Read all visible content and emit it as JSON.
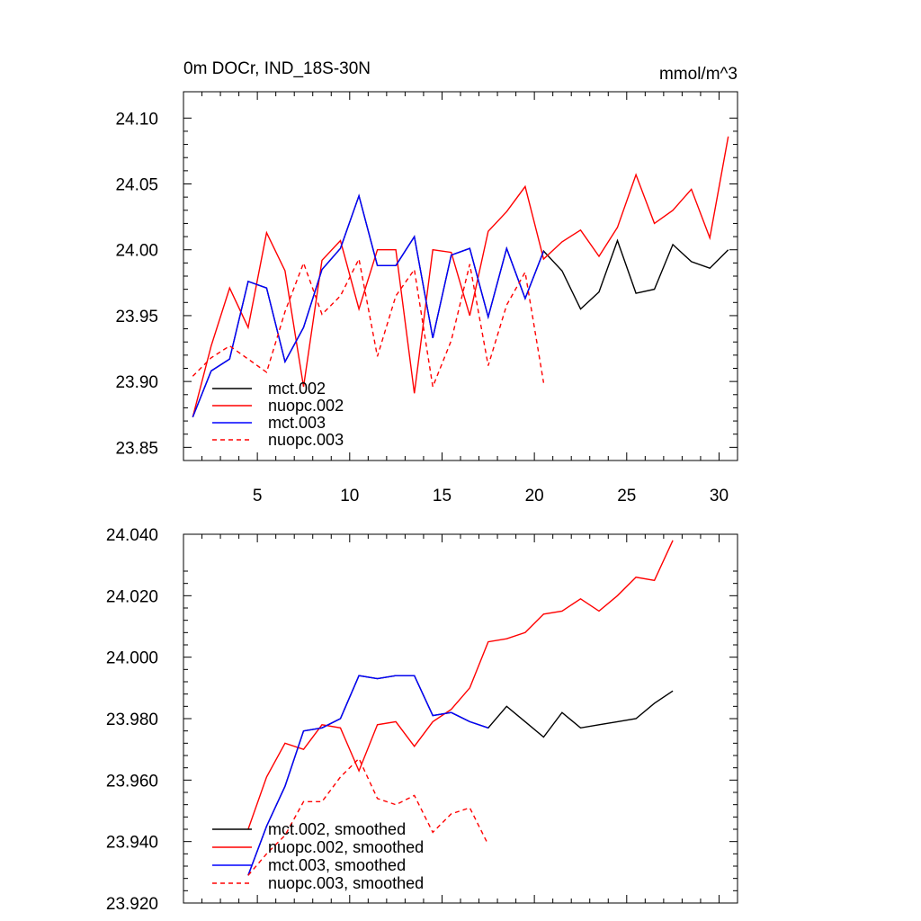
{
  "chart_data": [
    {
      "type": "line",
      "title_left": "0m DOCr, IND_18S-30N",
      "title_right": "mmol/m^3",
      "xlim": [
        1,
        31
      ],
      "ylim": [
        23.84,
        24.12
      ],
      "x_ticks": [
        5,
        10,
        15,
        20,
        25,
        30
      ],
      "x_tick_labels": [
        "5",
        "10",
        "15",
        "20",
        "25",
        "30"
      ],
      "y_ticks": [
        23.85,
        23.9,
        23.95,
        24.0,
        24.05,
        24.1
      ],
      "y_tick_labels": [
        "23.85",
        "23.90",
        "23.95",
        "24.00",
        "24.05",
        "24.10"
      ],
      "legend": [
        "mct.002",
        "nuopc.002",
        "mct.003",
        "nuopc.003"
      ],
      "series": [
        {
          "name": "mct.002",
          "color": "#000000",
          "dash": false,
          "x": [
            1.5,
            2.5,
            3.5,
            4.5,
            5.5,
            6.5,
            7.5,
            8.5,
            9.5,
            10.5,
            11.5,
            12.5,
            13.5,
            14.5,
            15.5,
            16.5,
            17.5,
            18.5,
            19.5,
            20.5,
            21.5,
            22.5,
            23.5,
            24.5,
            25.5,
            26.5,
            27.5,
            28.5,
            29.5,
            30.5
          ],
          "y": [
            23.873,
            23.908,
            23.917,
            23.976,
            23.971,
            23.915,
            23.941,
            23.985,
            24.001,
            24.041,
            23.988,
            23.988,
            24.01,
            23.933,
            23.996,
            24.001,
            23.949,
            24.001,
            23.963,
            23.999,
            23.984,
            23.955,
            23.968,
            24.007,
            23.967,
            23.97,
            24.004,
            23.991,
            23.986,
            24.0
          ]
        },
        {
          "name": "nuopc.002",
          "color": "#ff0000",
          "dash": false,
          "x": [
            1.5,
            2.5,
            3.5,
            4.5,
            5.5,
            6.5,
            7.5,
            8.5,
            9.5,
            10.5,
            11.5,
            12.5,
            13.5,
            14.5,
            15.5,
            16.5,
            17.5,
            18.5,
            19.5,
            20.5,
            21.5,
            22.5,
            23.5,
            24.5,
            25.5,
            26.5,
            27.5,
            28.5,
            29.5,
            30.5
          ],
          "y": [
            23.873,
            23.927,
            23.971,
            23.941,
            24.013,
            23.984,
            23.896,
            23.992,
            24.007,
            23.955,
            24.0,
            24.0,
            23.891,
            24.0,
            23.998,
            23.95,
            24.014,
            24.029,
            24.048,
            23.993,
            24.006,
            24.015,
            23.995,
            24.017,
            24.057,
            24.02,
            24.03,
            24.046,
            24.009,
            24.086
          ]
        },
        {
          "name": "mct.003",
          "color": "#0000ff",
          "dash": false,
          "x": [
            1.5,
            2.5,
            3.5,
            4.5,
            5.5,
            6.5,
            7.5,
            8.5,
            9.5,
            10.5,
            11.5,
            12.5,
            13.5,
            14.5,
            15.5,
            16.5,
            17.5,
            18.5,
            19.5,
            20.5
          ],
          "y": [
            23.873,
            23.908,
            23.917,
            23.976,
            23.971,
            23.915,
            23.941,
            23.985,
            24.001,
            24.041,
            23.988,
            23.988,
            24.01,
            23.933,
            23.996,
            24.001,
            23.949,
            24.001,
            23.963,
            23.999
          ]
        },
        {
          "name": "nuopc.003",
          "color": "#ff0000",
          "dash": true,
          "x": [
            1.5,
            2.5,
            3.5,
            4.5,
            5.5,
            6.5,
            7.5,
            8.5,
            9.5,
            10.5,
            11.5,
            12.5,
            13.5,
            14.5,
            15.5,
            16.5,
            17.5,
            18.5,
            19.5,
            20.5
          ],
          "y": [
            23.904,
            23.918,
            23.927,
            23.917,
            23.907,
            23.953,
            23.99,
            23.951,
            23.965,
            23.993,
            23.919,
            23.965,
            23.985,
            23.896,
            23.931,
            23.989,
            23.912,
            23.958,
            23.983,
            23.899
          ]
        }
      ]
    },
    {
      "type": "line",
      "xlim": [
        1,
        31
      ],
      "ylim": [
        23.92,
        24.04
      ],
      "x_ticks": [
        5,
        10,
        15,
        20,
        25,
        30
      ],
      "x_tick_labels": [],
      "y_ticks": [
        23.92,
        23.94,
        23.96,
        23.98,
        24.0,
        24.02,
        24.04
      ],
      "y_tick_labels": [
        "23.920",
        "23.940",
        "23.960",
        "23.980",
        "24.000",
        "24.020",
        "24.040"
      ],
      "legend": [
        "mct.002, smoothed",
        "nuopc.002, smoothed",
        "mct.003, smoothed",
        "nuopc.003, smoothed"
      ],
      "series": [
        {
          "name": "mct.002, smoothed",
          "color": "#000000",
          "dash": false,
          "x": [
            4.5,
            5.5,
            6.5,
            7.5,
            8.5,
            9.5,
            10.5,
            11.5,
            12.5,
            13.5,
            14.5,
            15.5,
            16.5,
            17.5,
            18.5,
            19.5,
            20.5,
            21.5,
            22.5,
            23.5,
            24.5,
            25.5,
            26.5,
            27.5
          ],
          "y": [
            23.929,
            23.945,
            23.958,
            23.976,
            23.977,
            23.98,
            23.994,
            23.993,
            23.994,
            23.994,
            23.981,
            23.982,
            23.979,
            23.977,
            23.984,
            23.979,
            23.974,
            23.982,
            23.977,
            23.978,
            23.979,
            23.98,
            23.985,
            23.989
          ]
        },
        {
          "name": "nuopc.002, smoothed",
          "color": "#ff0000",
          "dash": false,
          "x": [
            4.5,
            5.5,
            6.5,
            7.5,
            8.5,
            9.5,
            10.5,
            11.5,
            12.5,
            13.5,
            14.5,
            15.5,
            16.5,
            17.5,
            18.5,
            19.5,
            20.5,
            21.5,
            22.5,
            23.5,
            24.5,
            25.5,
            26.5,
            27.5
          ],
          "y": [
            23.944,
            23.961,
            23.972,
            23.97,
            23.978,
            23.977,
            23.963,
            23.978,
            23.979,
            23.971,
            23.979,
            23.983,
            23.99,
            24.005,
            24.006,
            24.008,
            24.014,
            24.015,
            24.019,
            24.015,
            24.02,
            24.026,
            24.025,
            24.038
          ]
        },
        {
          "name": "mct.003, smoothed",
          "color": "#0000ff",
          "dash": false,
          "x": [
            4.5,
            5.5,
            6.5,
            7.5,
            8.5,
            9.5,
            10.5,
            11.5,
            12.5,
            13.5,
            14.5,
            15.5,
            16.5,
            17.5
          ],
          "y": [
            23.929,
            23.945,
            23.958,
            23.976,
            23.977,
            23.98,
            23.994,
            23.993,
            23.994,
            23.994,
            23.981,
            23.982,
            23.979,
            23.977
          ]
        },
        {
          "name": "nuopc.003, smoothed",
          "color": "#ff0000",
          "dash": true,
          "x": [
            4.5,
            5.5,
            6.5,
            7.5,
            8.5,
            9.5,
            10.5,
            11.5,
            12.5,
            13.5,
            14.5,
            15.5,
            16.5,
            17.5
          ],
          "y": [
            23.929,
            23.936,
            23.942,
            23.953,
            23.953,
            23.961,
            23.967,
            23.954,
            23.952,
            23.955,
            23.943,
            23.949,
            23.951,
            23.939
          ]
        }
      ]
    }
  ]
}
